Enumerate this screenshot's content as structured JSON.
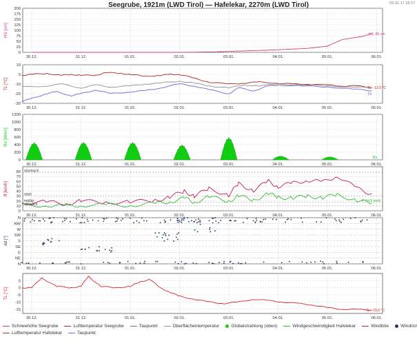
{
  "header": {
    "title": "Seegrube, 1921m (LWD Tirol) — Hafelekar, 2270m (LWD Tirol)",
    "timestamp": "05.01.17 18:17"
  },
  "x_ticks": [
    "30.12.",
    "31.12.",
    "01.01.",
    "02.01.",
    "03.01.",
    "04.01.",
    "05.01.",
    "06.01."
  ],
  "chart_data": [
    {
      "type": "line",
      "panel": "snow",
      "ylabel": "HS [cm]",
      "ylim": [
        0,
        200
      ],
      "yticks": [
        0,
        25,
        50,
        75,
        100,
        125,
        150,
        175,
        200
      ],
      "end_label": "HS: 85 cm",
      "series": [
        {
          "name": "Schneehöhe Seegrube",
          "color": "#d63384",
          "x": [
            0,
            1,
            2,
            3,
            3.7,
            4.2,
            4.8,
            5.2,
            5.6,
            6,
            6.3,
            6.7,
            6.9
          ],
          "y": [
            0,
            0,
            0,
            0,
            2,
            6,
            10,
            14,
            18,
            28,
            58,
            72,
            85
          ]
        }
      ]
    },
    {
      "type": "line",
      "panel": "temperature",
      "ylabel": "TL [°C]",
      "ylim": [
        -30,
        10
      ],
      "yticks": [
        -30,
        -20,
        -10,
        0,
        10
      ],
      "end_label_1": "TL: -13,5 °C",
      "end_label_2": "Td",
      "series": [
        {
          "name": "Lufttemperatur Seegrube",
          "color": "#b22222",
          "x": [
            -0.2,
            0,
            0.3,
            0.6,
            0.8,
            1,
            1.3,
            1.5,
            1.8,
            2,
            2.3,
            2.6,
            2.8,
            3,
            3.3,
            3.6,
            4,
            4.3,
            4.6,
            5,
            5.3,
            5.6,
            6,
            6.3,
            6.6,
            6.9
          ],
          "y": [
            -1,
            0,
            1,
            -1,
            0,
            -1,
            -1,
            2,
            1,
            0,
            -2,
            -1,
            0,
            0,
            -4,
            -8,
            -10,
            -9,
            -8,
            -9,
            -10,
            -10,
            -11,
            -12,
            -12,
            -13.5
          ]
        },
        {
          "name": "Oberflächentemperatur",
          "color": "#909090",
          "x": [
            -0.2,
            0.3,
            0.6,
            1,
            1.3,
            1.6,
            2,
            2.3,
            2.6,
            3,
            3.3,
            3.6,
            4,
            4.3,
            4.6,
            5,
            5.5,
            6,
            6.5,
            6.9
          ],
          "y": [
            -13,
            -12,
            -10,
            -14,
            -11,
            -13,
            -12,
            -10,
            -9,
            -7,
            -9,
            -12,
            -14,
            -11,
            -12,
            -10,
            -11,
            -12,
            -13,
            -14
          ]
        },
        {
          "name": "Taupunkt",
          "color": "#6666dd",
          "x": [
            -0.2,
            0,
            0.3,
            0.5,
            0.8,
            1,
            1.3,
            1.6,
            2,
            2.3,
            2.6,
            3,
            3.3,
            3.6,
            4,
            4.2,
            4.5,
            4.8,
            5,
            5.5,
            6,
            6.5,
            6.9
          ],
          "y": [
            -28,
            -25,
            -20,
            -18,
            -22,
            -20,
            -16,
            -20,
            -18,
            -17,
            -14,
            -10,
            -12,
            -16,
            -20,
            -14,
            -17,
            -12,
            -11,
            -12,
            -13,
            -15,
            -17
          ]
        }
      ]
    },
    {
      "type": "area",
      "panel": "radiation",
      "ylabel": "Rs [W/m²]",
      "ylim": [
        0,
        1200
      ],
      "yticks": [
        0,
        200,
        400,
        600,
        800,
        1000,
        1200
      ],
      "end_label": "Rs",
      "series": [
        {
          "name": "Globalstrahlung (oben)",
          "color": "#11cc11",
          "peaks": [
            {
              "center": 0.05,
              "height": 460
            },
            {
              "center": 1.05,
              "height": 470
            },
            {
              "center": 2.05,
              "height": 470
            },
            {
              "center": 3.05,
              "height": 400
            },
            {
              "center": 4.0,
              "height": 600
            },
            {
              "center": 5.05,
              "height": 100
            },
            {
              "center": 6.05,
              "height": 80
            }
          ]
        }
      ]
    },
    {
      "type": "line",
      "panel": "wind",
      "ylabel": "ff [km/h]",
      "ylim": [
        0,
        90
      ],
      "yticks": [
        0,
        10,
        20,
        30,
        40,
        50,
        60,
        70,
        80
      ],
      "threshold_labels": [
        "stürmisch",
        "stark",
        "mäßig",
        "schwach"
      ],
      "end_label": "ff: 14,5 km/h",
      "series": [
        {
          "name": "Windböe",
          "color": "#c2185b",
          "x": [
            -0.2,
            0.3,
            0.7,
            1,
            1.5,
            2,
            2.5,
            2.8,
            3.1,
            3.3,
            3.6,
            4,
            4.2,
            4.5,
            4.8,
            5,
            5.3,
            5.6,
            5.9,
            6.2,
            6.6,
            6.9
          ],
          "y": [
            16,
            18,
            14,
            20,
            17,
            18,
            21,
            28,
            40,
            30,
            45,
            32,
            55,
            42,
            60,
            50,
            56,
            63,
            58,
            72,
            45,
            35
          ]
        },
        {
          "name": "Windgeschwindigkeit Hafelekar",
          "color": "#33bb33",
          "x": [
            -0.2,
            0.3,
            0.7,
            1,
            1.5,
            2,
            2.5,
            2.8,
            3.1,
            3.3,
            3.6,
            4,
            4.2,
            4.5,
            4.8,
            5,
            5.3,
            5.6,
            5.9,
            6.2,
            6.6,
            6.9
          ],
          "y": [
            10,
            12,
            9,
            12,
            11,
            12,
            14,
            19,
            25,
            18,
            28,
            20,
            30,
            22,
            35,
            28,
            26,
            30,
            27,
            32,
            22,
            14.5
          ]
        }
      ]
    },
    {
      "type": "scatter",
      "panel": "direction",
      "ylabel": "dd [°]",
      "ylim": [
        0,
        360
      ],
      "tick_labels": [
        "N",
        "NE",
        "E",
        "SE",
        "S",
        "SW",
        "W",
        "NW",
        "N"
      ],
      "series": [
        {
          "name": "Windrichtung",
          "color": "#1f3a5f",
          "bands": [
            {
              "x": [
                -0.2,
                7.0
              ],
              "y": [
                320,
                360
              ],
              "count": 120
            },
            {
              "x": [
                -0.2,
                7.0
              ],
              "y": [
                0,
                20
              ],
              "count": 60
            },
            {
              "x": [
                0.2,
                0.6
              ],
              "y": [
                140,
                200
              ],
              "count": 12
            },
            {
              "x": [
                1.0,
                1.8
              ],
              "y": [
                90,
                140
              ],
              "count": 14
            },
            {
              "x": [
                2.5,
                3.0
              ],
              "y": [
                170,
                260
              ],
              "count": 16
            },
            {
              "x": [
                3.3,
                3.8
              ],
              "y": [
                250,
                330
              ],
              "count": 10
            }
          ]
        }
      ]
    },
    {
      "type": "line",
      "panel": "temperature2",
      "ylabel": "TL [°C]",
      "ylim": [
        -18,
        10
      ],
      "yticks": [
        -15,
        -10,
        -5,
        0,
        5
      ],
      "end_label": "TL: -15,6 °C",
      "series": [
        {
          "name": "Lufttemperatur Hafelekar",
          "color": "#d62728",
          "x": [
            -0.2,
            0,
            0.2,
            0.5,
            0.8,
            1,
            1.15,
            1.4,
            1.7,
            2,
            2.2,
            2.4,
            2.6,
            2.8,
            3,
            3.3,
            3.6,
            3.9,
            4.2,
            4.5,
            4.8,
            5.1,
            5.4,
            5.7,
            6,
            6.3,
            6.6,
            6.9
          ],
          "y": [
            0,
            0,
            7,
            1,
            0,
            1,
            8,
            1,
            0,
            1,
            4,
            6,
            0,
            -3,
            -6,
            -8,
            -10,
            -11,
            -10,
            -8,
            -9,
            -10,
            -11,
            -12,
            -14,
            -15,
            -15.2,
            -15.6
          ]
        }
      ]
    }
  ],
  "legend": [
    [
      {
        "label": "Schneehöhe Seegrube",
        "color": "#d63384",
        "kind": "line"
      },
      {
        "label": "Lufttemperatur Seegrube",
        "color": "#b22222",
        "kind": "line"
      },
      {
        "label": "Taupunkt",
        "color": "#6666dd",
        "kind": "line"
      },
      {
        "label": "Oberflächentemperatur",
        "color": "#909090",
        "kind": "line"
      },
      {
        "label": "Globalstrahlung (oben)",
        "color": "#11cc11",
        "kind": "dot"
      },
      {
        "label": "Windgeschwindigkeit Hafelekar",
        "color": "#33bb33",
        "kind": "line"
      },
      {
        "label": "Windböe",
        "color": "#c2185b",
        "kind": "line"
      },
      {
        "label": "Windrichtung",
        "color": "#1f3a5f",
        "kind": "dot"
      }
    ],
    [
      {
        "label": "Lufttemperatur Hafelekar",
        "color": "#d62728",
        "kind": "line"
      },
      {
        "label": "Taupunkt",
        "color": "#6666dd",
        "kind": "line"
      }
    ]
  ]
}
